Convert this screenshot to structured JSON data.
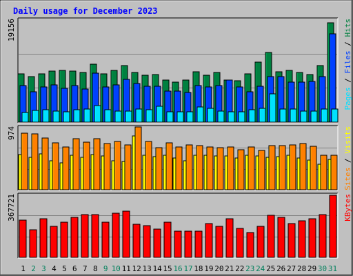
{
  "chart_data": {
    "type": "bar",
    "title": "Daily usage for December 2023",
    "categories": [
      "1",
      "2",
      "3",
      "4",
      "5",
      "6",
      "7",
      "8",
      "9",
      "10",
      "11",
      "12",
      "13",
      "14",
      "15",
      "16",
      "17",
      "18",
      "19",
      "20",
      "21",
      "22",
      "23",
      "24",
      "25",
      "26",
      "27",
      "28",
      "29",
      "30",
      "31"
    ],
    "weekend_days": [
      2,
      3,
      9,
      10,
      16,
      17,
      23,
      24,
      30,
      31
    ],
    "panels": [
      {
        "id": "top",
        "ymax_label": "19156",
        "ymax": 19156,
        "series": [
          {
            "name": "Hits",
            "color": "#008040",
            "values": [
              9000,
              8500,
              9000,
              9500,
              9600,
              9500,
              9300,
              10800,
              9000,
              9600,
              10500,
              9200,
              8700,
              8900,
              7800,
              7500,
              7800,
              9400,
              8800,
              9200,
              7800,
              7700,
              9000,
              11200,
              13000,
              9400,
              9600,
              9300,
              8900,
              10500,
              18500
            ]
          },
          {
            "name": "Files",
            "color": "#0040ff",
            "values": [
              6800,
              5700,
              6500,
              7000,
              6300,
              6800,
              6200,
              9100,
              6600,
              7000,
              8000,
              7200,
              6700,
              6700,
              5800,
              5800,
              5500,
              6800,
              6600,
              6800,
              7900,
              6600,
              5700,
              6700,
              8500,
              8500,
              7500,
              7500,
              7600,
              8500,
              16500
            ]
          },
          {
            "name": "Pages",
            "color": "#00e0ff",
            "values": [
              1800,
              2200,
              2300,
              2000,
              1900,
              2300,
              2400,
              3100,
              2300,
              2100,
              2000,
              2500,
              2300,
              3000,
              1900,
              1900,
              1900,
              2800,
              2600,
              2000,
              1900,
              1900,
              2300,
              2600,
              5300,
              2500,
              2400,
              2000,
              2000,
              2400,
              2400
            ]
          }
        ]
      },
      {
        "id": "mid",
        "ymax_label": "974",
        "ymax": 974,
        "series": [
          {
            "name": "Visits",
            "color": "#ffff00",
            "values": [
              550,
              500,
              560,
              450,
              420,
              540,
              500,
              550,
              520,
              450,
              440,
              830,
              540,
              510,
              530,
              490,
              450,
              530,
              540,
              520,
              520,
              490,
              540,
              520,
              500,
              510,
              540,
              490,
              460,
              400,
              470
            ]
          },
          {
            "name": "Sites",
            "color": "#ff8000",
            "values": [
              880,
              870,
              800,
              730,
              660,
              790,
              740,
              790,
              720,
              750,
              700,
              1000,
              750,
              650,
              730,
              660,
              700,
              690,
              660,
              650,
              660,
              620,
              660,
              610,
              690,
              690,
              700,
              720,
              670,
              540,
              540
            ]
          }
        ]
      },
      {
        "id": "bot",
        "ymax_label": "367721",
        "ymax": 367721,
        "series": [
          {
            "name": "KBytes",
            "color": "#ff0000",
            "values": [
              220000,
              160000,
              225000,
              180000,
              205000,
              235000,
              250000,
              250000,
              205000,
              260000,
              270000,
              195000,
              185000,
              165000,
              205000,
              155000,
              155000,
              155000,
              200000,
              180000,
              225000,
              170000,
              145000,
              180000,
              245000,
              235000,
              200000,
              215000,
              225000,
              250000,
              365000
            ]
          }
        ]
      }
    ],
    "right_labels": {
      "top": [
        "Pages",
        "Files",
        "Hits"
      ],
      "mid": [
        "Sites",
        "Visits"
      ],
      "bot": [
        "KBytes"
      ]
    },
    "colors": {
      "background": "#c0c0c0",
      "panel": "#c0c0c0",
      "title": "#0000ff",
      "weekday_label": "#000000",
      "weekend_label": "#00805c"
    }
  }
}
